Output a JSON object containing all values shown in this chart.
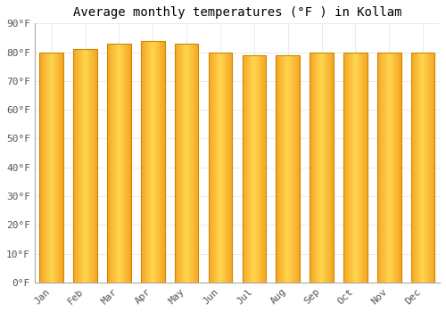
{
  "title": "Average monthly temperatures (°F ) in Kollam",
  "months": [
    "Jan",
    "Feb",
    "Mar",
    "Apr",
    "May",
    "Jun",
    "Jul",
    "Aug",
    "Sep",
    "Oct",
    "Nov",
    "Dec"
  ],
  "values": [
    80,
    81,
    83,
    84,
    83,
    80,
    79,
    79,
    80,
    80,
    80,
    80
  ],
  "ylim": [
    0,
    90
  ],
  "yticks": [
    0,
    10,
    20,
    30,
    40,
    50,
    60,
    70,
    80,
    90
  ],
  "ytick_labels": [
    "0°F",
    "10°F",
    "20°F",
    "30°F",
    "40°F",
    "50°F",
    "60°F",
    "70°F",
    "80°F",
    "90°F"
  ],
  "background_color": "#FFFFFF",
  "chart_bg_color": "#FFFFFF",
  "grid_color": "#E8E8E8",
  "title_fontsize": 10,
  "tick_fontsize": 8,
  "bar_color_center": "#FFD54F",
  "bar_color_edge": "#F5A623",
  "bar_border_color": "#CC8800",
  "figsize": [
    5.0,
    3.5
  ],
  "dpi": 100
}
